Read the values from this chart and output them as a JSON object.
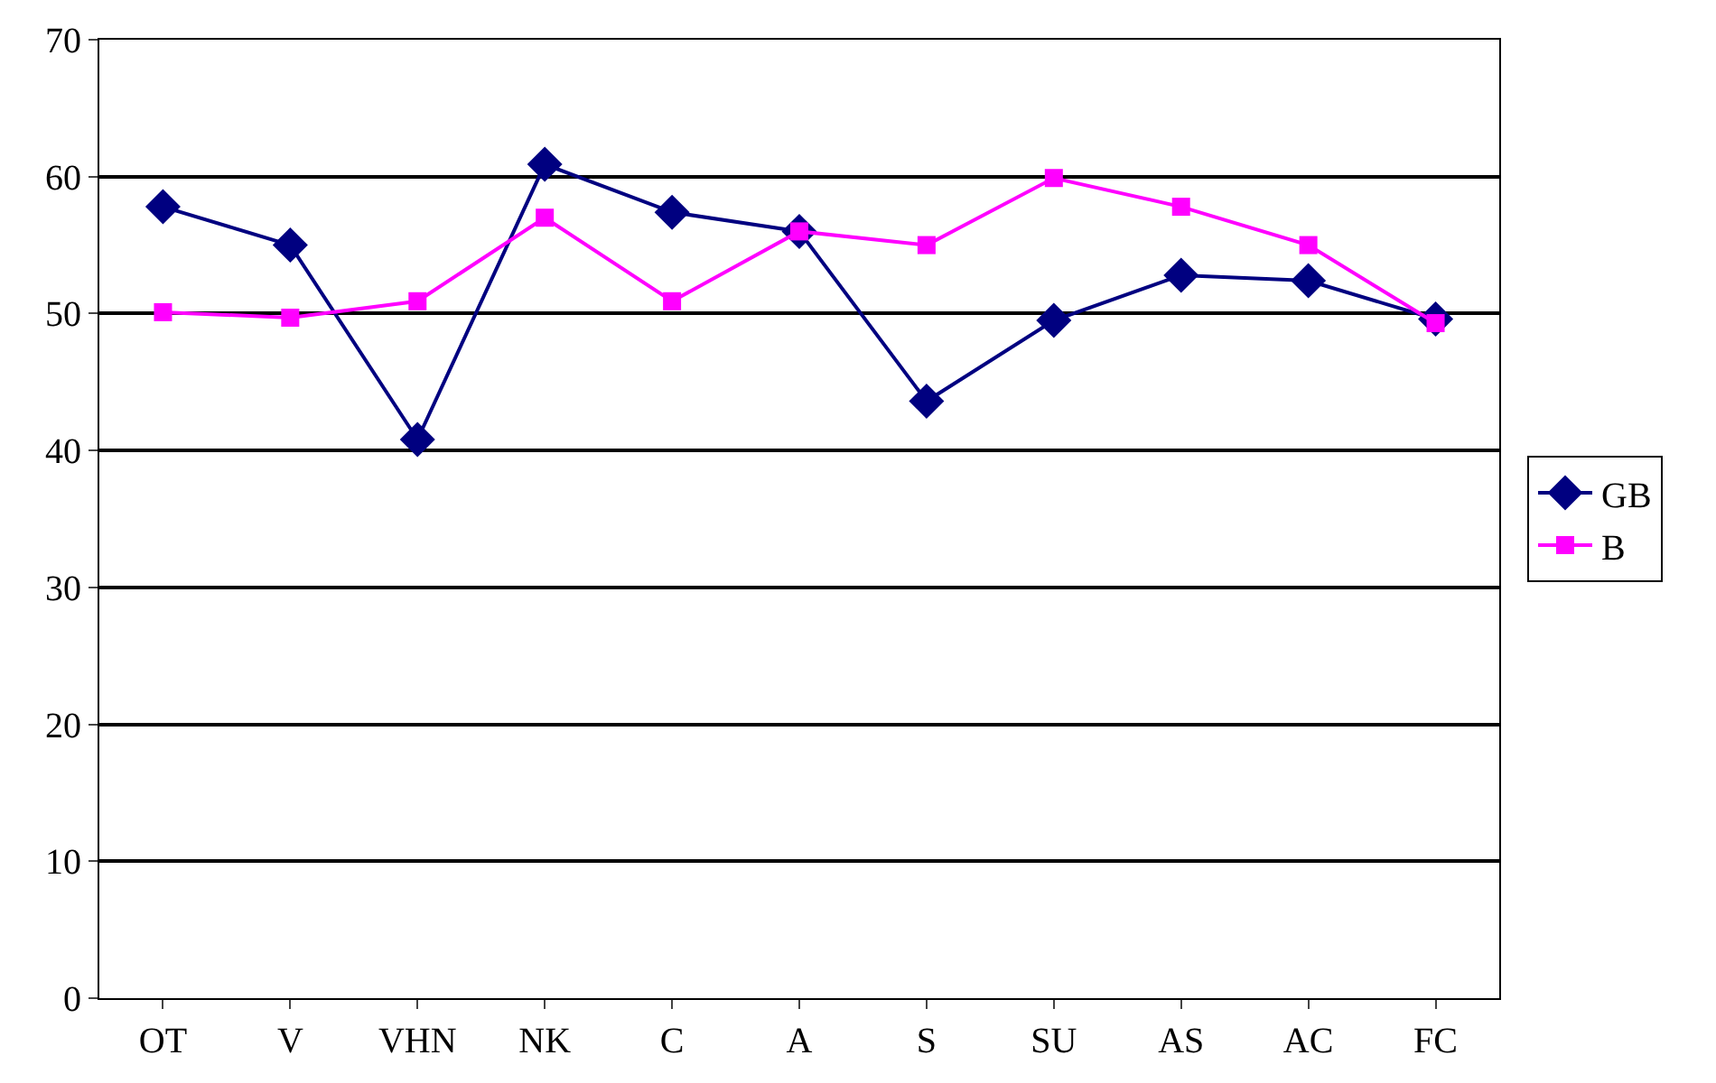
{
  "chart_data": {
    "type": "line",
    "categories": [
      "OT",
      "V",
      "VHN",
      "NK",
      "C",
      "A",
      "S",
      "SU",
      "AS",
      "AC",
      "FC"
    ],
    "series": [
      {
        "name": "GB",
        "color": "#000080",
        "marker": "diamond",
        "values": [
          57.8,
          55.0,
          40.8,
          60.9,
          57.4,
          56.0,
          43.6,
          49.5,
          52.8,
          52.4,
          49.6
        ]
      },
      {
        "name": "B",
        "color": "#ff00ff",
        "marker": "square",
        "values": [
          50.1,
          49.7,
          50.9,
          57.0,
          50.9,
          56.0,
          55.0,
          59.9,
          57.8,
          55.0,
          49.3
        ]
      }
    ],
    "ylim": [
      0,
      70
    ],
    "yticks": [
      0,
      10,
      20,
      30,
      40,
      50,
      60,
      70
    ],
    "grid": "y",
    "legend": "right",
    "line_style": "solid"
  }
}
